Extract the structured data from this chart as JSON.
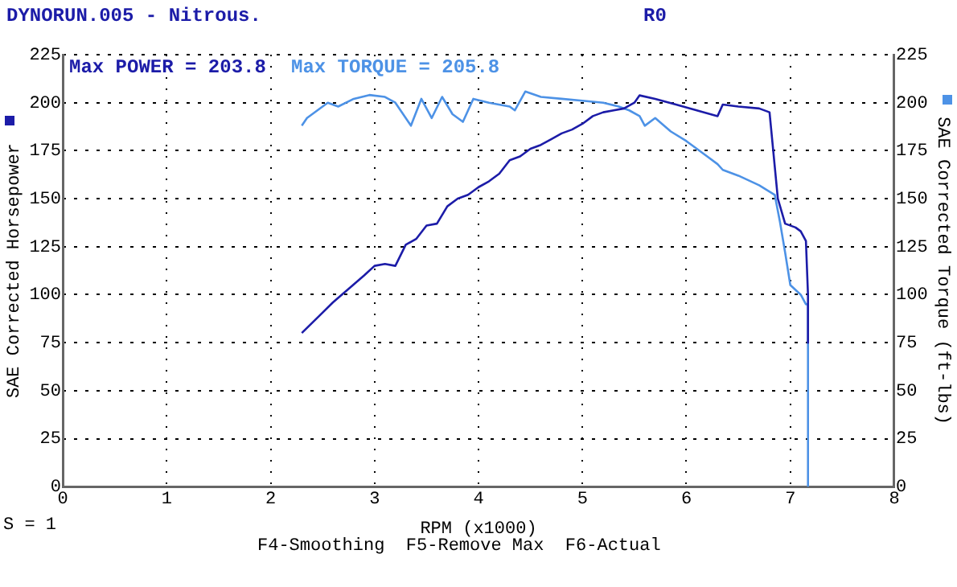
{
  "chart_data": {
    "type": "line",
    "title": "DYNORUN.005 - Nitrous.",
    "xlabel": "RPM (x1000)",
    "ylabel": "SAE Corrected Horsepower",
    "y2label": "SAE Corrected Torque (ft-lbs)",
    "annotations": [
      "R0",
      "Max POWER = 203.8",
      "Max TORQUE = 205.8",
      "S = 1",
      "F4-Smoothing  F5-Remove Max  F6-Actual"
    ],
    "series": [
      {
        "color": "#1c1ca8",
        "axis": "y",
        "x": [
          2.3,
          2.45,
          2.6,
          2.75,
          2.9,
          3.0,
          3.1,
          3.2,
          3.3,
          3.4,
          3.5,
          3.6,
          3.7,
          3.8,
          3.9,
          4.0,
          4.1,
          4.2,
          4.3,
          4.4,
          4.5,
          4.6,
          4.7,
          4.8,
          4.9,
          5.0,
          5.1,
          5.2,
          5.3,
          5.4,
          5.5,
          5.55,
          5.7,
          5.9,
          6.1,
          6.3,
          6.35,
          6.5,
          6.7,
          6.8,
          6.88,
          6.95,
          7.05,
          7.1,
          7.15,
          7.17,
          7.17
        ],
        "values": [
          80,
          88,
          96,
          103,
          110,
          115,
          116,
          115,
          126,
          129,
          136,
          137,
          146,
          150,
          152,
          156,
          159,
          163,
          170,
          172,
          176,
          178,
          181,
          184,
          186,
          189,
          193,
          195,
          196,
          197,
          200,
          203.8,
          202,
          199,
          196,
          193,
          199,
          198,
          197,
          195,
          150,
          137,
          135,
          133,
          128,
          100,
          75
        ]
      },
      {
        "color": "#4d92e6",
        "axis": "y2",
        "x": [
          2.3,
          2.35,
          2.45,
          2.55,
          2.65,
          2.8,
          2.95,
          3.1,
          3.2,
          3.35,
          3.45,
          3.55,
          3.65,
          3.75,
          3.85,
          3.95,
          4.1,
          4.3,
          4.35,
          4.45,
          4.6,
          4.8,
          5.0,
          5.2,
          5.35,
          5.45,
          5.55,
          5.6,
          5.7,
          5.85,
          6.0,
          6.2,
          6.3,
          6.35,
          6.5,
          6.7,
          6.85,
          6.9,
          6.95,
          7.0,
          7.1,
          7.15,
          7.17,
          7.17
        ],
        "values": [
          188,
          192,
          196,
          200,
          198,
          202,
          204,
          203,
          200,
          188,
          202,
          192,
          203,
          194,
          190,
          202,
          200,
          198,
          196,
          205.8,
          203,
          202,
          201,
          200,
          198,
          196,
          193,
          188,
          192,
          185,
          180,
          172,
          168,
          165,
          162,
          157,
          152,
          138,
          122,
          105,
          100,
          95,
          95,
          0
        ]
      }
    ],
    "xlim": [
      0,
      8
    ],
    "xticks": [
      0,
      1,
      2,
      3,
      4,
      5,
      6,
      7,
      8
    ],
    "ylim": [
      0,
      225
    ],
    "yticks": [
      0,
      25,
      50,
      75,
      100,
      125,
      150,
      175,
      200,
      225
    ],
    "y2lim": [
      0,
      225
    ],
    "y2ticks": [
      0,
      25,
      50,
      75,
      100,
      125,
      150,
      175,
      200,
      225
    ],
    "grid": true,
    "marker": "none",
    "line_style": "solid",
    "legend": false
  }
}
